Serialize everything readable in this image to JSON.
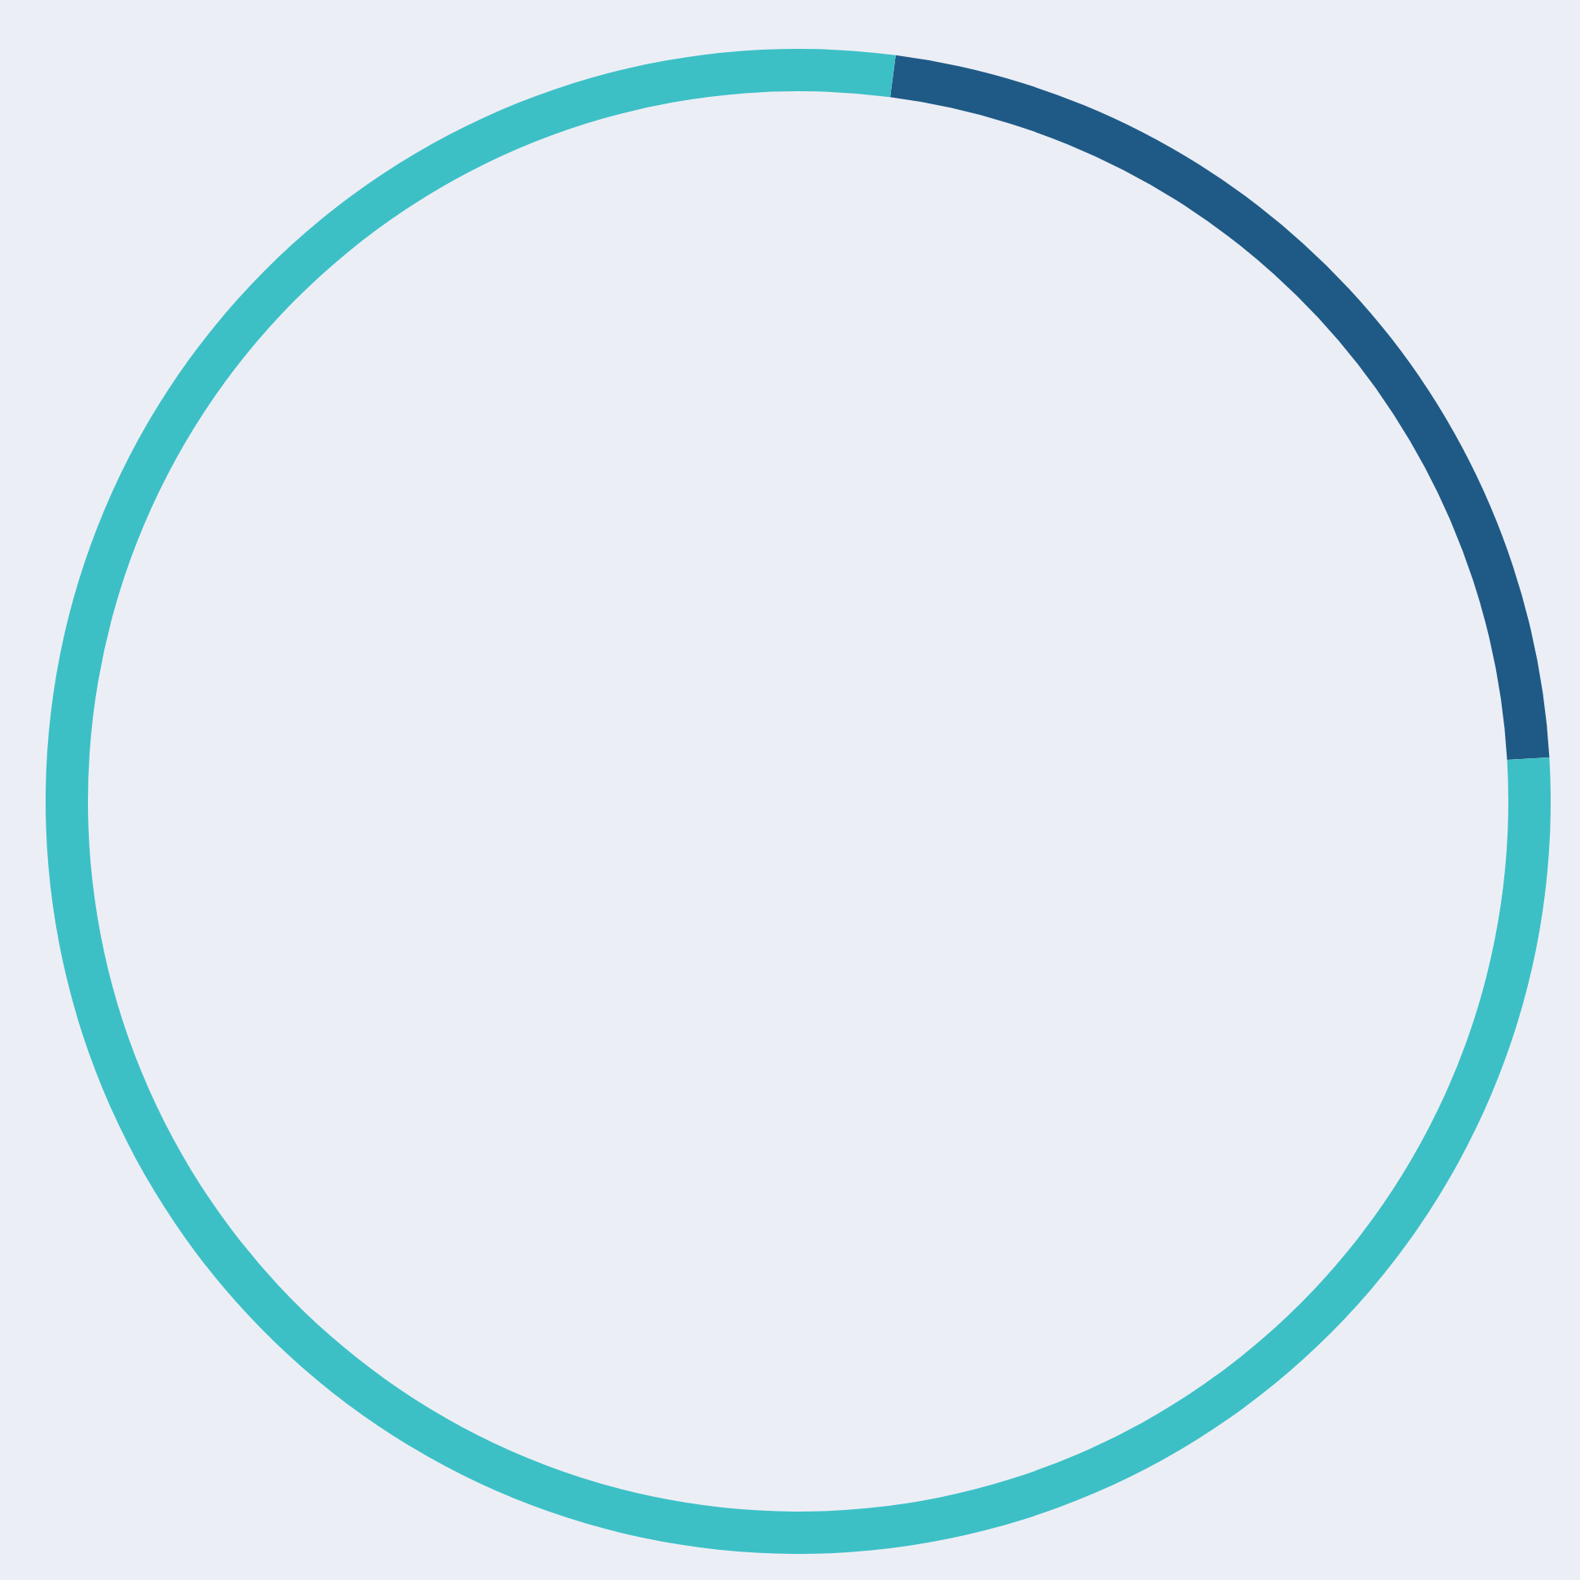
{
  "chart_data": {
    "type": "donut",
    "categories": [
      null,
      null
    ],
    "values": [
      22,
      78
    ],
    "colors": [
      "#1f5a86",
      "#3cc0c6"
    ]
  }
}
